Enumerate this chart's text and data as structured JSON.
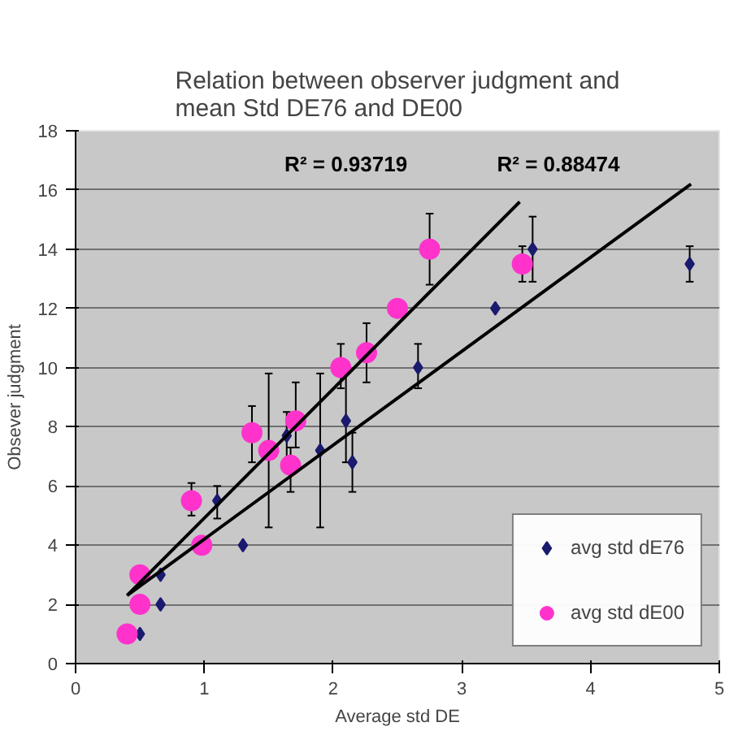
{
  "chart_data": {
    "type": "scatter",
    "title": "Relation between observer judgment and\nmean Std DE76 and DE00",
    "xlabel": "Average std DE",
    "ylabel": "Obsever judgment",
    "xlim": [
      0,
      5
    ],
    "ylim": [
      0,
      18
    ],
    "xticks": [
      0,
      1,
      2,
      3,
      4,
      5
    ],
    "yticks": [
      0,
      2,
      4,
      6,
      8,
      10,
      12,
      14,
      16,
      18
    ],
    "grid": "y",
    "legend": "bottom right",
    "series": [
      {
        "name": "avg std dE76",
        "color": "#1a1a6e",
        "marker": "diamond",
        "x": [
          0.5,
          0.66,
          0.66,
          1.1,
          1.3,
          1.64,
          1.9,
          2.1,
          2.15,
          2.66,
          3.26,
          3.55,
          4.77
        ],
        "values": [
          1,
          2,
          3,
          5.5,
          4,
          7.7,
          7.2,
          8.2,
          6.8,
          10,
          12,
          14,
          13.5
        ],
        "errors": [
          null,
          null,
          null,
          [
            4.9,
            6.0
          ],
          null,
          [
            6.9,
            8.5
          ],
          [
            4.6,
            9.8
          ],
          [
            6.8,
            9.8
          ],
          [
            5.8,
            7.8
          ],
          [
            9.3,
            10.8
          ],
          null,
          [
            12.9,
            15.1
          ],
          [
            12.9,
            14.1
          ]
        ]
      },
      {
        "name": "avg std dE00",
        "color": "#ff33cc",
        "marker": "circle",
        "x": [
          0.4,
          0.5,
          0.5,
          0.9,
          0.98,
          1.37,
          1.5,
          1.71,
          1.67,
          2.06,
          2.26,
          2.5,
          2.75,
          3.47
        ],
        "values": [
          1,
          2,
          3,
          5.5,
          4,
          7.8,
          7.2,
          8.2,
          6.7,
          10,
          10.5,
          12,
          14,
          13.5
        ],
        "errors": [
          null,
          null,
          null,
          [
            5.0,
            6.1
          ],
          null,
          [
            6.8,
            8.7
          ],
          [
            4.6,
            9.8
          ],
          [
            7.3,
            9.5
          ],
          [
            5.8,
            7.3
          ],
          [
            9.3,
            10.8
          ],
          [
            9.5,
            11.5
          ],
          null,
          [
            12.8,
            15.2
          ],
          [
            12.9,
            14.1
          ]
        ]
      },
      {
        "type": "line",
        "color": "#000000",
        "x": [
          0.4,
          3.45
        ],
        "values": [
          2.3,
          15.6
        ]
      },
      {
        "type": "line",
        "color": "#000000",
        "x": [
          0.4,
          4.78
        ],
        "values": [
          2.3,
          16.2
        ]
      }
    ],
    "annotations": [
      "R² = 0.93719",
      "R² = 0.88474"
    ]
  }
}
